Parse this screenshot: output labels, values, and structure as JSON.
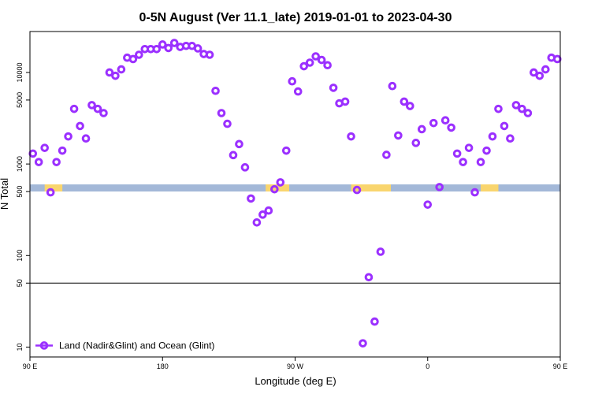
{
  "chart_data": {
    "type": "scatter",
    "title": "0-5N August (Ver 11.1_late)   2019-01-01 to 2023-04-30",
    "xlabel": "Longitude (deg E)",
    "ylabel": "N Total",
    "y_scale": "log",
    "xlim": [
      90,
      450
    ],
    "ylim": [
      7.8,
      28000
    ],
    "x_ticks": [
      {
        "value": 90,
        "label": "90 E"
      },
      {
        "value": 180,
        "label": "180"
      },
      {
        "value": 270,
        "label": "90 W"
      },
      {
        "value": 360,
        "label": "0"
      },
      {
        "value": 450,
        "label": "90 E"
      },
      {
        "value": 540,
        "label": "180"
      }
    ],
    "y_ticks": [
      {
        "value": 10,
        "label": "10"
      },
      {
        "value": 50,
        "label": "50"
      },
      {
        "value": 100,
        "label": "100"
      },
      {
        "value": 500,
        "label": "500"
      },
      {
        "value": 1000,
        "label": "1000"
      },
      {
        "value": 5000,
        "label": "5000"
      },
      {
        "value": 10000,
        "label": "10000"
      }
    ],
    "reference_line_y": 50,
    "marker_color": "#9b30ff",
    "ocean_color": "#a3b8d8",
    "land_color": "#f9d56e",
    "legend": {
      "label": "Land (Nadir&Glint) and Ocean (Glint)",
      "position": "bottom-left"
    },
    "series": [
      {
        "name": "Land (Nadir&Glint) and Ocean (Glint)",
        "points": [
          [
            92,
            1300
          ],
          [
            96,
            1050
          ],
          [
            100,
            1500
          ],
          [
            104,
            490
          ],
          [
            108,
            1050
          ],
          [
            112,
            1400
          ],
          [
            116,
            2000
          ],
          [
            120,
            4000
          ],
          [
            124,
            2600
          ],
          [
            128,
            1900
          ],
          [
            132,
            4400
          ],
          [
            136,
            4000
          ],
          [
            140,
            3600
          ],
          [
            144,
            10000
          ],
          [
            148,
            9200
          ],
          [
            152,
            10800
          ],
          [
            156,
            14500
          ],
          [
            160,
            14000
          ],
          [
            164,
            15600
          ],
          [
            168,
            18000
          ],
          [
            172,
            18000
          ],
          [
            176,
            18000
          ],
          [
            180,
            20200
          ],
          [
            184,
            18500
          ],
          [
            188,
            21000
          ],
          [
            192,
            19000
          ],
          [
            196,
            19500
          ],
          [
            200,
            19500
          ],
          [
            204,
            18300
          ],
          [
            208,
            15900
          ],
          [
            212,
            15600
          ],
          [
            216,
            6300
          ],
          [
            220,
            3600
          ],
          [
            224,
            2750
          ],
          [
            228,
            1250
          ],
          [
            232,
            1650
          ],
          [
            236,
            920
          ],
          [
            240,
            420
          ],
          [
            244,
            230
          ],
          [
            248,
            280
          ],
          [
            252,
            310
          ],
          [
            256,
            530
          ],
          [
            260,
            630
          ],
          [
            264,
            1400
          ],
          [
            268,
            8000
          ],
          [
            272,
            6200
          ],
          [
            276,
            11700
          ],
          [
            280,
            12800
          ],
          [
            284,
            15000
          ],
          [
            288,
            13700
          ],
          [
            292,
            12000
          ],
          [
            296,
            6800
          ],
          [
            300,
            4600
          ],
          [
            304,
            4800
          ],
          [
            308,
            2000
          ],
          [
            312,
            520
          ],
          [
            316,
            11
          ],
          [
            320,
            58
          ],
          [
            324,
            19
          ],
          [
            328,
            110
          ],
          [
            332,
            1260
          ],
          [
            336,
            7100
          ],
          [
            340,
            2050
          ],
          [
            344,
            4800
          ],
          [
            348,
            4300
          ],
          [
            352,
            1700
          ],
          [
            356,
            2400
          ],
          [
            360,
            360
          ],
          [
            364,
            2800
          ],
          [
            368,
            560
          ],
          [
            372,
            3000
          ],
          [
            376,
            2500
          ],
          [
            380,
            1300
          ],
          [
            384,
            1050
          ],
          [
            388,
            1500
          ],
          [
            392,
            490
          ],
          [
            396,
            1050
          ],
          [
            400,
            1400
          ],
          [
            404,
            2000
          ],
          [
            408,
            4000
          ],
          [
            412,
            2600
          ],
          [
            416,
            1900
          ],
          [
            420,
            4400
          ],
          [
            424,
            4000
          ],
          [
            428,
            3600
          ],
          [
            432,
            10000
          ],
          [
            436,
            9200
          ],
          [
            440,
            10800
          ],
          [
            444,
            14500
          ],
          [
            448,
            14000
          ]
        ]
      }
    ]
  }
}
